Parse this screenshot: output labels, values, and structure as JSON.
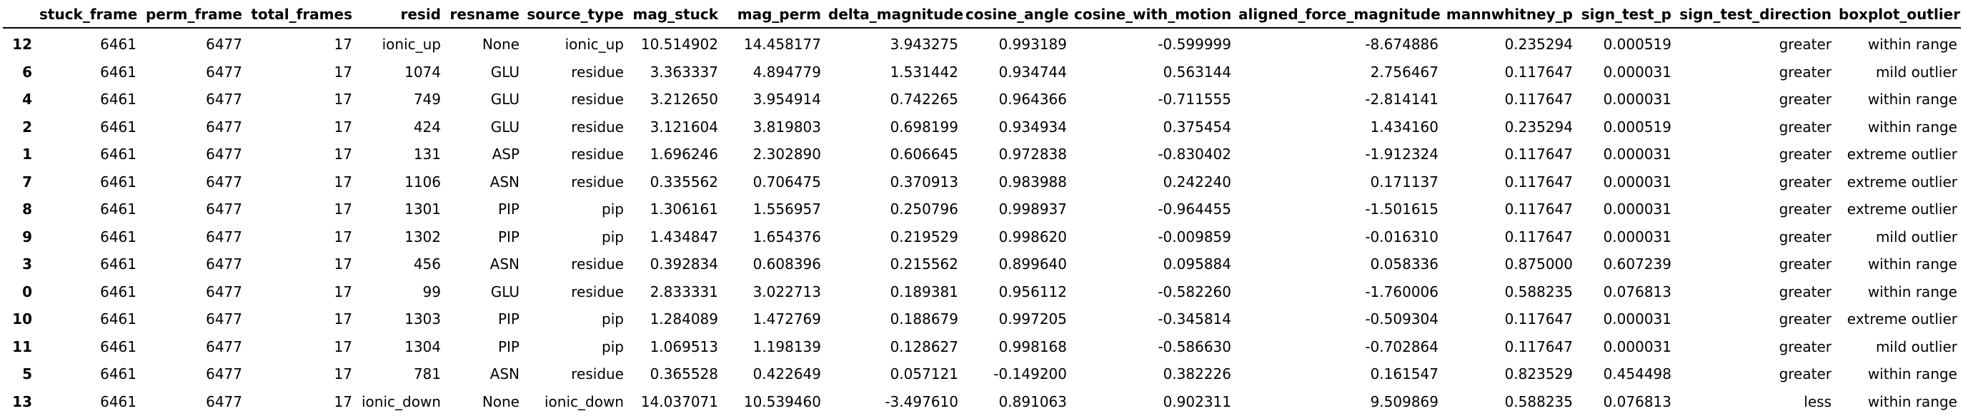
{
  "table": {
    "columns": [
      "",
      "stuck_frame",
      "perm_frame",
      "total_frames",
      "resid",
      "resname",
      "source_type",
      "mag_stuck",
      "mag_perm",
      "delta_magnitude",
      "cosine_angle",
      "cosine_with_motion",
      "aligned_force_magnitude",
      "mannwhitney_p",
      "sign_test_p",
      "sign_test_direction",
      "boxplot_outlier"
    ],
    "rows": [
      [
        "12",
        "6461",
        "6477",
        "17",
        "ionic_up",
        "None",
        "ionic_up",
        "10.514902",
        "14.458177",
        "3.943275",
        "0.993189",
        "-0.599999",
        "-8.674886",
        "0.235294",
        "0.000519",
        "greater",
        "within range"
      ],
      [
        "6",
        "6461",
        "6477",
        "17",
        "1074",
        "GLU",
        "residue",
        "3.363337",
        "4.894779",
        "1.531442",
        "0.934744",
        "0.563144",
        "2.756467",
        "0.117647",
        "0.000031",
        "greater",
        "mild outlier"
      ],
      [
        "4",
        "6461",
        "6477",
        "17",
        "749",
        "GLU",
        "residue",
        "3.212650",
        "3.954914",
        "0.742265",
        "0.964366",
        "-0.711555",
        "-2.814141",
        "0.117647",
        "0.000031",
        "greater",
        "within range"
      ],
      [
        "2",
        "6461",
        "6477",
        "17",
        "424",
        "GLU",
        "residue",
        "3.121604",
        "3.819803",
        "0.698199",
        "0.934934",
        "0.375454",
        "1.434160",
        "0.235294",
        "0.000519",
        "greater",
        "within range"
      ],
      [
        "1",
        "6461",
        "6477",
        "17",
        "131",
        "ASP",
        "residue",
        "1.696246",
        "2.302890",
        "0.606645",
        "0.972838",
        "-0.830402",
        "-1.912324",
        "0.117647",
        "0.000031",
        "greater",
        "extreme outlier"
      ],
      [
        "7",
        "6461",
        "6477",
        "17",
        "1106",
        "ASN",
        "residue",
        "0.335562",
        "0.706475",
        "0.370913",
        "0.983988",
        "0.242240",
        "0.171137",
        "0.117647",
        "0.000031",
        "greater",
        "extreme outlier"
      ],
      [
        "8",
        "6461",
        "6477",
        "17",
        "1301",
        "PIP",
        "pip",
        "1.306161",
        "1.556957",
        "0.250796",
        "0.998937",
        "-0.964455",
        "-1.501615",
        "0.117647",
        "0.000031",
        "greater",
        "extreme outlier"
      ],
      [
        "9",
        "6461",
        "6477",
        "17",
        "1302",
        "PIP",
        "pip",
        "1.434847",
        "1.654376",
        "0.219529",
        "0.998620",
        "-0.009859",
        "-0.016310",
        "0.117647",
        "0.000031",
        "greater",
        "mild outlier"
      ],
      [
        "3",
        "6461",
        "6477",
        "17",
        "456",
        "ASN",
        "residue",
        "0.392834",
        "0.608396",
        "0.215562",
        "0.899640",
        "0.095884",
        "0.058336",
        "0.875000",
        "0.607239",
        "greater",
        "within range"
      ],
      [
        "0",
        "6461",
        "6477",
        "17",
        "99",
        "GLU",
        "residue",
        "2.833331",
        "3.022713",
        "0.189381",
        "0.956112",
        "-0.582260",
        "-1.760006",
        "0.588235",
        "0.076813",
        "greater",
        "within range"
      ],
      [
        "10",
        "6461",
        "6477",
        "17",
        "1303",
        "PIP",
        "pip",
        "1.284089",
        "1.472769",
        "0.188679",
        "0.997205",
        "-0.345814",
        "-0.509304",
        "0.117647",
        "0.000031",
        "greater",
        "extreme outlier"
      ],
      [
        "11",
        "6461",
        "6477",
        "17",
        "1304",
        "PIP",
        "pip",
        "1.069513",
        "1.198139",
        "0.128627",
        "0.998168",
        "-0.586630",
        "-0.702864",
        "0.117647",
        "0.000031",
        "greater",
        "mild outlier"
      ],
      [
        "5",
        "6461",
        "6477",
        "17",
        "781",
        "ASN",
        "residue",
        "0.365528",
        "0.422649",
        "0.057121",
        "-0.149200",
        "0.382226",
        "0.161547",
        "0.823529",
        "0.454498",
        "greater",
        "within range"
      ],
      [
        "13",
        "6461",
        "6477",
        "17",
        "ionic_down",
        "None",
        "ionic_down",
        "14.037071",
        "10.539460",
        "-3.497610",
        "0.891063",
        "0.902311",
        "9.509869",
        "0.588235",
        "0.076813",
        "less",
        "within range"
      ]
    ]
  }
}
